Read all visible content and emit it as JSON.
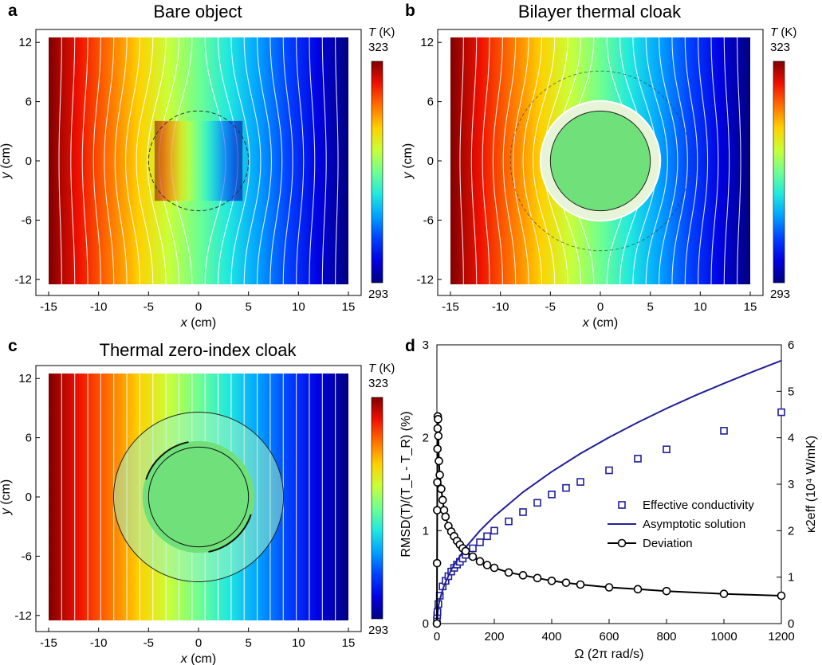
{
  "colorbar": {
    "label_var": "T",
    "label_unit": " (K)",
    "max": "323",
    "min": "293",
    "colors": [
      "#00007f",
      "#0000e0",
      "#0040ff",
      "#00a0ff",
      "#20e8e0",
      "#70ff90",
      "#c8ff38",
      "#ffd000",
      "#ff7000",
      "#f01000",
      "#7f0000"
    ]
  },
  "map_axes": {
    "xlabel_var": "x",
    "xlabel_unit": " (cm)",
    "ylabel_var": "y",
    "ylabel_unit": " (cm)",
    "xticks": [
      "-15",
      "-10",
      "-5",
      "0",
      "5",
      "10",
      "15"
    ],
    "yticks": [
      "12",
      "6",
      "0",
      "-6",
      "-12"
    ]
  },
  "panels": [
    {
      "letter": "a",
      "title": "Bare object"
    },
    {
      "letter": "b",
      "title": "Bilayer thermal cloak"
    },
    {
      "letter": "c",
      "title": "Thermal zero-index cloak"
    },
    {
      "letter": "d",
      "title": ""
    }
  ],
  "chart_data": [
    {
      "type": "heatmap",
      "panel": "a",
      "title": "Bare object",
      "xlabel": "x (cm)",
      "ylabel": "y (cm)",
      "xlim": [
        -15,
        15
      ],
      "ylim": [
        -12.5,
        12.5
      ],
      "colorbar_range": [
        293,
        323
      ],
      "colorbar_label": "T (K)",
      "object_radius_cm": 5,
      "note_text": ""
    },
    {
      "type": "heatmap",
      "panel": "b",
      "title": "Bilayer thermal cloak",
      "xlabel": "x (cm)",
      "ylabel": "y (cm)",
      "xlim": [
        -15,
        15
      ],
      "ylim": [
        -12.5,
        12.5
      ],
      "colorbar_range": [
        293,
        323
      ],
      "colorbar_label": "T (K)",
      "cloak_inner_radius_cm": 5,
      "cloak_outer_radius_cm": 6
    },
    {
      "type": "heatmap",
      "panel": "c",
      "title": "Thermal zero-index cloak",
      "xlabel": "x (cm)",
      "ylabel": "y (cm)",
      "xlim": [
        -15,
        15
      ],
      "ylim": [
        -12.5,
        12.5
      ],
      "colorbar_range": [
        293,
        323
      ],
      "colorbar_label": "T (K)",
      "cloak_inner_radius_cm": 5,
      "cloak_outer_radius_cm": 8.5
    },
    {
      "type": "line",
      "panel": "d",
      "xlabel": "Ω (2π rad/s)",
      "ylabel_left": "RMSD(T)/(T_L - T_R) (%)",
      "ylabel_right": "κ2eff (10⁴ W/mK)",
      "xlim": [
        0,
        1200
      ],
      "ylim_left": [
        0,
        3
      ],
      "ylim_right": [
        0,
        6
      ],
      "xticks": [
        "0",
        "200",
        "400",
        "600",
        "800",
        "1000",
        "1200"
      ],
      "yticks_left": [
        "0",
        "1",
        "2",
        "3"
      ],
      "yticks_right": [
        "0",
        "1",
        "2",
        "3",
        "4",
        "5",
        "6"
      ],
      "legend_position": "center-right",
      "series": [
        {
          "name": "Effective conductivity",
          "axis": "right",
          "marker": "square",
          "color": "#1f1f9a",
          "x": [
            0,
            1,
            2,
            5,
            10,
            20,
            30,
            40,
            50,
            60,
            70,
            80,
            90,
            100,
            125,
            150,
            175,
            200,
            250,
            300,
            350,
            400,
            450,
            500,
            600,
            700,
            800,
            1000,
            1200
          ],
          "y": [
            0.08,
            0.18,
            0.25,
            0.42,
            0.6,
            0.8,
            0.92,
            1.02,
            1.12,
            1.2,
            1.27,
            1.33,
            1.4,
            1.48,
            1.62,
            1.75,
            1.88,
            2.0,
            2.2,
            2.4,
            2.6,
            2.78,
            2.92,
            3.05,
            3.3,
            3.55,
            3.75,
            4.15,
            4.55
          ]
        },
        {
          "name": "Asymptotic solution",
          "axis": "right",
          "marker": "none",
          "color": "#1f1f9a",
          "x": [
            0,
            5,
            10,
            25,
            50,
            100,
            150,
            200,
            300,
            400,
            500,
            600,
            700,
            800,
            900,
            1000,
            1100,
            1200
          ],
          "y": [
            0,
            0.37,
            0.52,
            0.82,
            1.16,
            1.64,
            2.0,
            2.31,
            2.83,
            3.27,
            3.66,
            4.01,
            4.33,
            4.63,
            4.91,
            5.17,
            5.42,
            5.66
          ]
        },
        {
          "name": "Deviation",
          "axis": "left",
          "marker": "circle",
          "color": "#000000",
          "x": [
            0,
            0.5,
            1,
            1.5,
            2,
            2.5,
            3,
            4,
            5,
            7,
            10,
            15,
            20,
            25,
            30,
            40,
            50,
            60,
            70,
            80,
            90,
            100,
            125,
            150,
            175,
            200,
            250,
            300,
            350,
            400,
            450,
            500,
            600,
            700,
            800,
            1000,
            1200
          ],
          "y": [
            0.0,
            0.65,
            1.22,
            1.52,
            1.88,
            2.1,
            2.23,
            2.2,
            2.02,
            1.75,
            1.6,
            1.45,
            1.33,
            1.22,
            1.15,
            1.05,
            0.99,
            0.94,
            0.89,
            0.85,
            0.81,
            0.78,
            0.72,
            0.67,
            0.63,
            0.6,
            0.55,
            0.52,
            0.49,
            0.46,
            0.44,
            0.42,
            0.39,
            0.37,
            0.35,
            0.32,
            0.3
          ]
        }
      ]
    }
  ]
}
